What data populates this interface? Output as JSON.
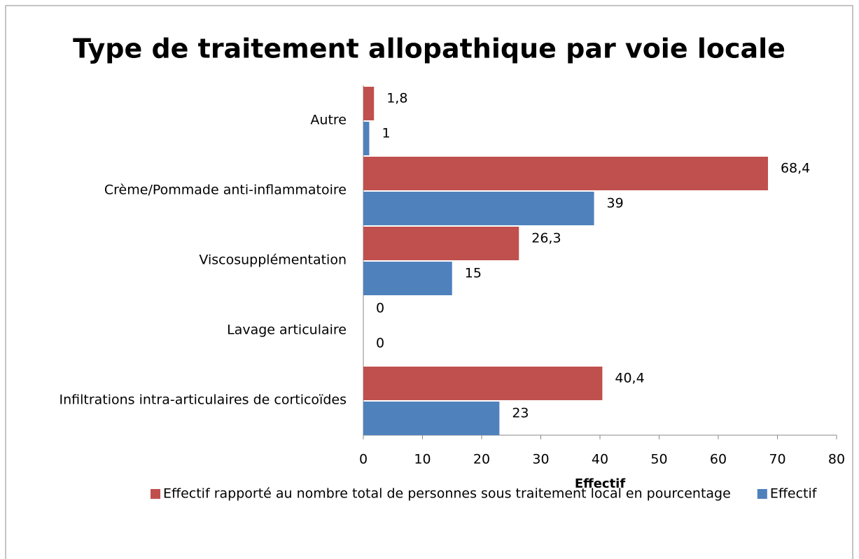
{
  "chart_data": {
    "type": "hbar",
    "title": "Type de traitement allopathique par voie locale",
    "x_label": "Effectif",
    "categories": [
      "Autre",
      "Crème/Pommade anti-inflammatoire",
      "Viscosupplémentation",
      "Lavage articulaire",
      "Infiltrations intra-articulaires de corticoïdes"
    ],
    "series": [
      {
        "name": "Effectif rapporté au nombre total de personnes sous traitement local en pourcentage",
        "color": "#c0504d",
        "values": [
          1.8,
          68.4,
          26.3,
          0,
          40.4
        ],
        "value_labels": [
          "1,8",
          "68,4",
          "26,3",
          "0",
          "40,4"
        ]
      },
      {
        "name": "Effectif",
        "color": "#4f81bd",
        "values": [
          1,
          39,
          15,
          0,
          23
        ]
      }
    ],
    "xlim": [
      0,
      80
    ],
    "xticks": [
      0,
      10,
      20,
      30,
      40,
      50,
      60,
      70,
      80
    ],
    "legend": "bottom"
  }
}
